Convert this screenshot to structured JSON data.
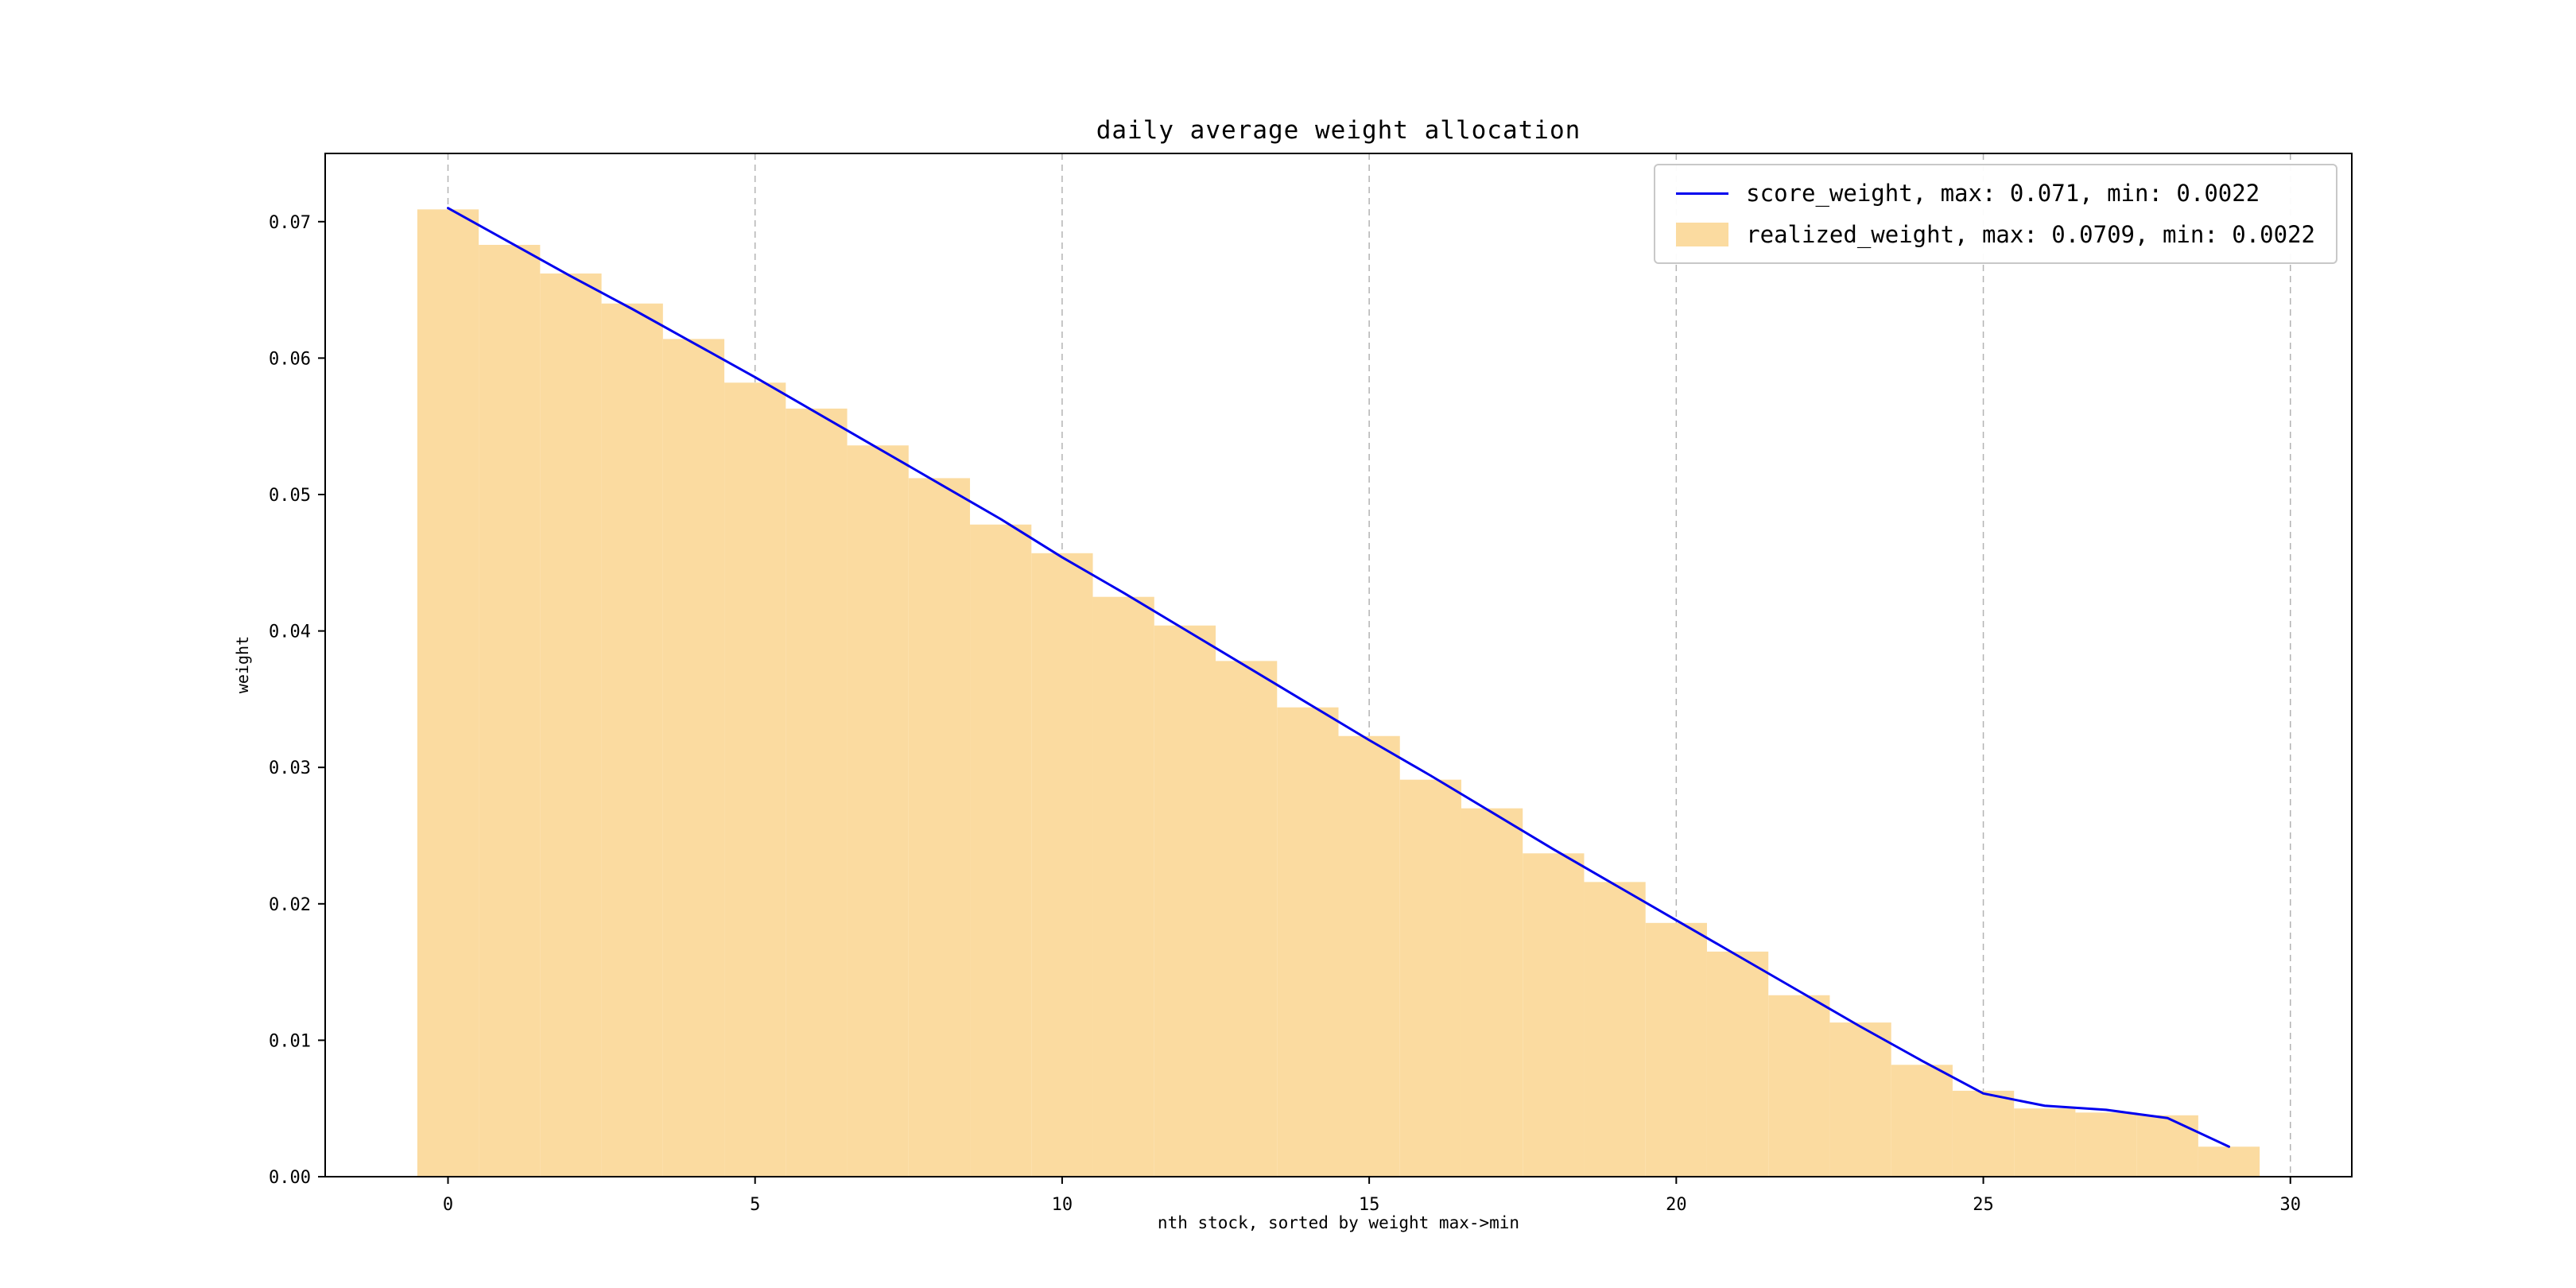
{
  "page": {
    "background": "#ffffff"
  },
  "chart_data": {
    "type": "bar",
    "title": "daily average weight allocation",
    "xlabel": "nth stock, sorted by weight max->min",
    "ylabel": "weight",
    "xlim": [
      -2,
      31
    ],
    "ylim": [
      0,
      0.075
    ],
    "grid": "vertical-dashed",
    "grid_color": "#b3b3b3",
    "legend_position": "upper-right",
    "x_ticks": [
      0,
      5,
      10,
      15,
      20,
      25,
      30
    ],
    "x_tick_labels": [
      "0",
      "5",
      "10",
      "15",
      "20",
      "25",
      "30"
    ],
    "y_ticks": [
      0,
      0.01,
      0.02,
      0.03,
      0.04,
      0.05,
      0.06,
      0.07
    ],
    "y_tick_labels": [
      "0.00",
      "0.01",
      "0.02",
      "0.03",
      "0.04",
      "0.05",
      "0.06",
      "0.07"
    ],
    "x": [
      0,
      1,
      2,
      3,
      4,
      5,
      6,
      7,
      8,
      9,
      10,
      11,
      12,
      13,
      14,
      15,
      16,
      17,
      18,
      19,
      20,
      21,
      22,
      23,
      24,
      25,
      26,
      27,
      28,
      29
    ],
    "series": [
      {
        "name": "score_weight",
        "type": "line",
        "color": "#0000ee",
        "legend_label": "score_weight, max: 0.071, min: 0.0022",
        "max": 0.071,
        "min": 0.0022,
        "values": [
          0.071,
          0.0685,
          0.066,
          0.0636,
          0.0611,
          0.0586,
          0.056,
          0.0534,
          0.0508,
          0.0482,
          0.0454,
          0.0428,
          0.0401,
          0.0374,
          0.0347,
          0.032,
          0.0294,
          0.0267,
          0.024,
          0.0214,
          0.0188,
          0.0162,
          0.0136,
          0.011,
          0.0085,
          0.0061,
          0.0052,
          0.0049,
          0.0043,
          0.0022
        ]
      },
      {
        "name": "realized_weight",
        "type": "bar",
        "color": "#fbdba0",
        "legend_label": "realized_weight, max: 0.0709, min: 0.0022",
        "max": 0.0709,
        "min": 0.0022,
        "values": [
          0.0709,
          0.0683,
          0.0662,
          0.064,
          0.0614,
          0.0582,
          0.0563,
          0.0536,
          0.0512,
          0.0478,
          0.0457,
          0.0425,
          0.0404,
          0.0378,
          0.0344,
          0.0323,
          0.0291,
          0.027,
          0.0237,
          0.0216,
          0.0186,
          0.0165,
          0.0133,
          0.0113,
          0.0082,
          0.0063,
          0.005,
          0.0047,
          0.0045,
          0.0022
        ]
      }
    ]
  }
}
